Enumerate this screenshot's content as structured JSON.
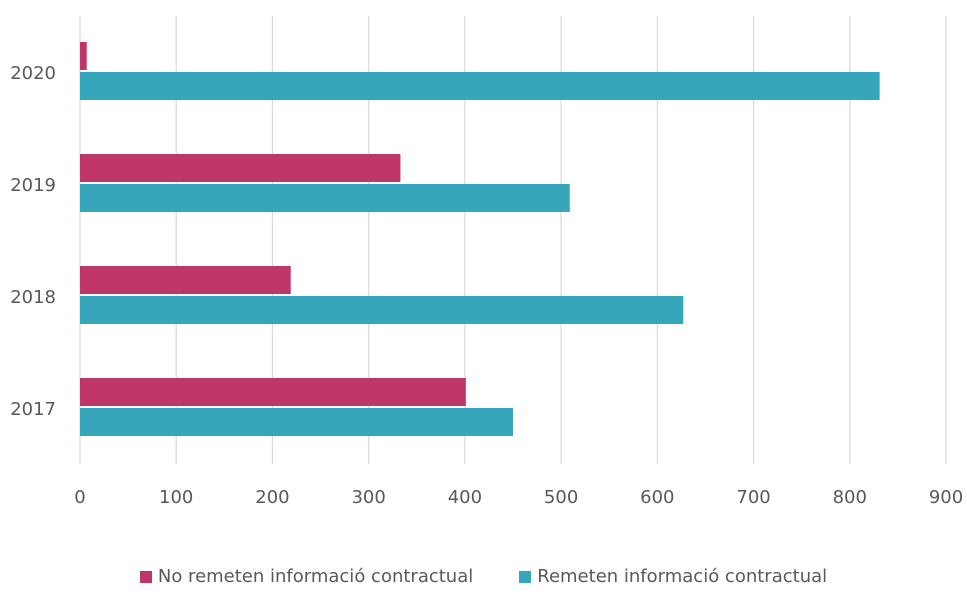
{
  "chart_data": {
    "type": "bar",
    "orientation": "horizontal",
    "categories": [
      "2020",
      "2019",
      "2018",
      "2017"
    ],
    "series": [
      {
        "name": "No remeten informació contractual",
        "color": "#C0356A",
        "values": [
          7,
          333,
          219,
          401
        ]
      },
      {
        "name": "Remeten informació contractual",
        "color": "#36A6BA",
        "values": [
          831,
          509,
          627,
          450
        ]
      }
    ],
    "xlim": [
      0,
      900
    ],
    "xticks": [
      "0",
      "100",
      "200",
      "300",
      "400",
      "500",
      "600",
      "700",
      "800",
      "900"
    ],
    "grid": "vertical",
    "gridColor": "#D9D9D9",
    "legend": "bottom-center"
  }
}
